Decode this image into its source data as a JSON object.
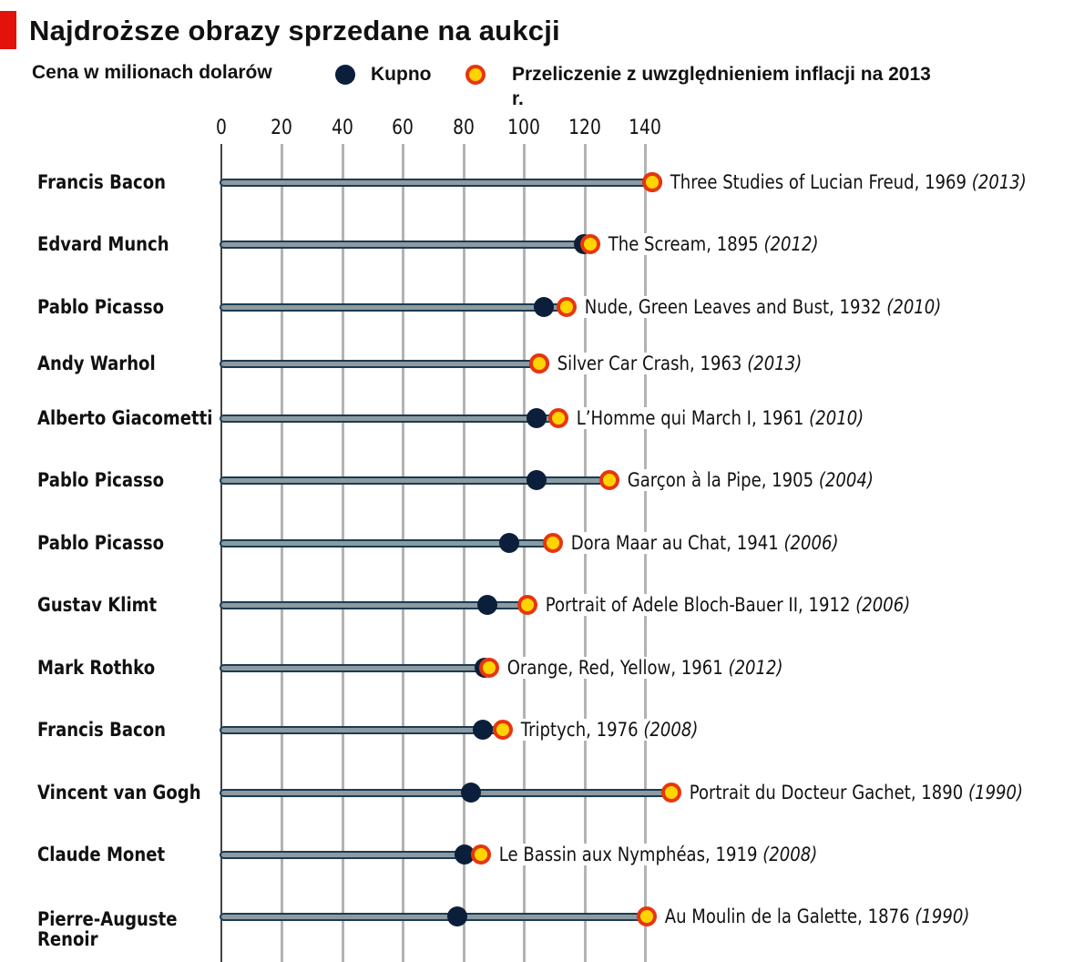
{
  "header": {
    "title": "Najdroższe obrazy sprzedane na aukcji",
    "subtitle": "Cena w milionach dolarów",
    "accent_color": "#e3120b"
  },
  "legend": {
    "items": [
      {
        "label": "Kupno",
        "marker": "navy-dot",
        "color": "#0c1f3a"
      },
      {
        "label": "Przeliczenie z uwzględnieniem inflacji na 2013 r.",
        "marker": "orange-ring-dot",
        "color": "#ffd400",
        "ring_color": "#e8350f"
      }
    ]
  },
  "axis": {
    "ticks": [
      "0",
      "20",
      "40",
      "60",
      "80",
      "100",
      "120",
      "140"
    ]
  },
  "rows": [
    {
      "artist": "Francis Bacon",
      "painting": "Three Studies of Lucian Freud, 1969",
      "year": "(2013)",
      "purchase": 142.4,
      "adjusted": 142.4
    },
    {
      "artist": "Edvard Munch",
      "painting": "The Scream, 1895",
      "year": "(2012)",
      "purchase": 119.9,
      "adjusted": 122.0
    },
    {
      "artist": "Pablo Picasso",
      "painting": "Nude, Green Leaves and Bust, 1932",
      "year": "(2010)",
      "purchase": 106.5,
      "adjusted": 114.0
    },
    {
      "artist": "Andy Warhol",
      "painting": "Silver Car Crash, 1963",
      "year": "(2013)",
      "purchase": 105.0,
      "adjusted": 105.0
    },
    {
      "artist": "Alberto Giacometti",
      "painting": "L’Homme qui March I, 1961",
      "year": "(2010)",
      "purchase": 104.3,
      "adjusted": 111.5
    },
    {
      "artist": "Pablo Picasso",
      "painting": "Garçon à la Pipe, 1905",
      "year": "(2004)",
      "purchase": 104.2,
      "adjusted": 128.4
    },
    {
      "artist": "Pablo Picasso",
      "painting": "Dora Maar au Chat, 1941",
      "year": "(2006)",
      "purchase": 95.2,
      "adjusted": 109.6
    },
    {
      "artist": "Gustav Klimt",
      "painting": "Portrait of Adele Bloch-Bauer II, 1912",
      "year": "(2006)",
      "purchase": 88.0,
      "adjusted": 101.3
    },
    {
      "artist": "Mark Rothko",
      "painting": "Orange, Red, Yellow, 1961",
      "year": "(2012)",
      "purchase": 86.9,
      "adjusted": 88.6
    },
    {
      "artist": "Francis Bacon",
      "painting": "Triptych, 1976",
      "year": "(2008)",
      "purchase": 86.3,
      "adjusted": 93.0
    },
    {
      "artist": "Vincent van Gogh",
      "painting": "Portrait du Docteur Gachet, 1890",
      "year": "(1990)",
      "purchase": 82.5,
      "adjusted": 148.6
    },
    {
      "artist": "Claude Monet",
      "painting": "Le Bassin aux Nymphéas, 1919",
      "year": "(2008)",
      "purchase": 80.5,
      "adjusted": 85.8
    },
    {
      "artist": "Pierre-Auguste Renoir",
      "painting": "Au Moulin de la Galette, 1876",
      "year": "(1990)",
      "purchase": 78.1,
      "adjusted": 140.6
    }
  ],
  "chart_data": {
    "type": "dot-range (dumbbell)",
    "title": "Najdroższe obrazy sprzedane na aukcji",
    "subtitle": "Cena w milionach dolarów",
    "xlabel": "Cena w milionach dolarów",
    "ylabel": "",
    "xlim": [
      0,
      150
    ],
    "x_ticks": [
      0,
      20,
      40,
      60,
      80,
      100,
      120,
      140
    ],
    "grid": true,
    "legend_position": "top",
    "categories": [
      "Francis Bacon — Three Studies of Lucian Freud, 1969 (2013)",
      "Edvard Munch — The Scream, 1895 (2012)",
      "Pablo Picasso — Nude, Green Leaves and Bust, 1932 (2010)",
      "Andy Warhol — Silver Car Crash, 1963 (2013)",
      "Alberto Giacometti — L’Homme qui March I, 1961 (2010)",
      "Pablo Picasso — Garçon à la Pipe, 1905 (2004)",
      "Pablo Picasso — Dora Maar au Chat, 1941 (2006)",
      "Gustav Klimt — Portrait of Adele Bloch-Bauer II, 1912 (2006)",
      "Mark Rothko — Orange, Red, Yellow, 1961 (2012)",
      "Francis Bacon — Triptych, 1976 (2008)",
      "Vincent van Gogh — Portrait du Docteur Gachet, 1890 (1990)",
      "Claude Monet — Le Bassin aux Nymphéas, 1919 (2008)",
      "Pierre-Auguste Renoir — Au Moulin de la Galette, 1876 (1990)"
    ],
    "series": [
      {
        "name": "Kupno",
        "values": [
          142.4,
          119.9,
          106.5,
          105.0,
          104.3,
          104.2,
          95.2,
          88.0,
          86.9,
          86.3,
          82.5,
          80.5,
          78.1
        ]
      },
      {
        "name": "Przeliczenie z uwzględnieniem inflacji na 2013 r.",
        "values": [
          142.4,
          122.0,
          114.0,
          105.0,
          111.5,
          128.4,
          109.6,
          101.3,
          88.6,
          93.0,
          148.6,
          85.8,
          140.6
        ]
      }
    ]
  }
}
